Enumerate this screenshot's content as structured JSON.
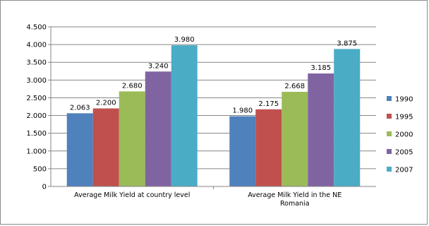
{
  "chart_data": {
    "type": "bar",
    "title": "",
    "xlabel": "",
    "ylabel": "",
    "categories": [
      [
        "Average Milk Yield at country  level"
      ],
      [
        "Average Milk Yield in the NE",
        "Romania"
      ]
    ],
    "series": [
      {
        "name": "1990",
        "color": "#4f81bd",
        "values": [
          2063,
          1980
        ],
        "labels": [
          "2.063",
          "1.980"
        ]
      },
      {
        "name": "1995",
        "color": "#c0504d",
        "values": [
          2200,
          2175
        ],
        "labels": [
          "2.200",
          "2.175"
        ]
      },
      {
        "name": "2000",
        "color": "#9bbb59",
        "values": [
          2680,
          2668
        ],
        "labels": [
          "2.680",
          "2.668"
        ]
      },
      {
        "name": "2005",
        "color": "#8064a2",
        "values": [
          3240,
          3185
        ],
        "labels": [
          "3.240",
          "3.185"
        ]
      },
      {
        "name": "2007",
        "color": "#4bacc6",
        "values": [
          3980,
          3875
        ],
        "labels": [
          "3.980",
          "3.875"
        ]
      }
    ],
    "ylim": [
      0,
      4500
    ],
    "yticks": [
      0,
      500,
      1000,
      1500,
      2000,
      2500,
      3000,
      3500,
      4000,
      4500
    ],
    "ytick_labels": [
      "0",
      "500",
      "1.000",
      "1.500",
      "2.000",
      "2.500",
      "3.000",
      "3.500",
      "4.000",
      "4.500"
    ],
    "grid": true,
    "legend": "right"
  }
}
